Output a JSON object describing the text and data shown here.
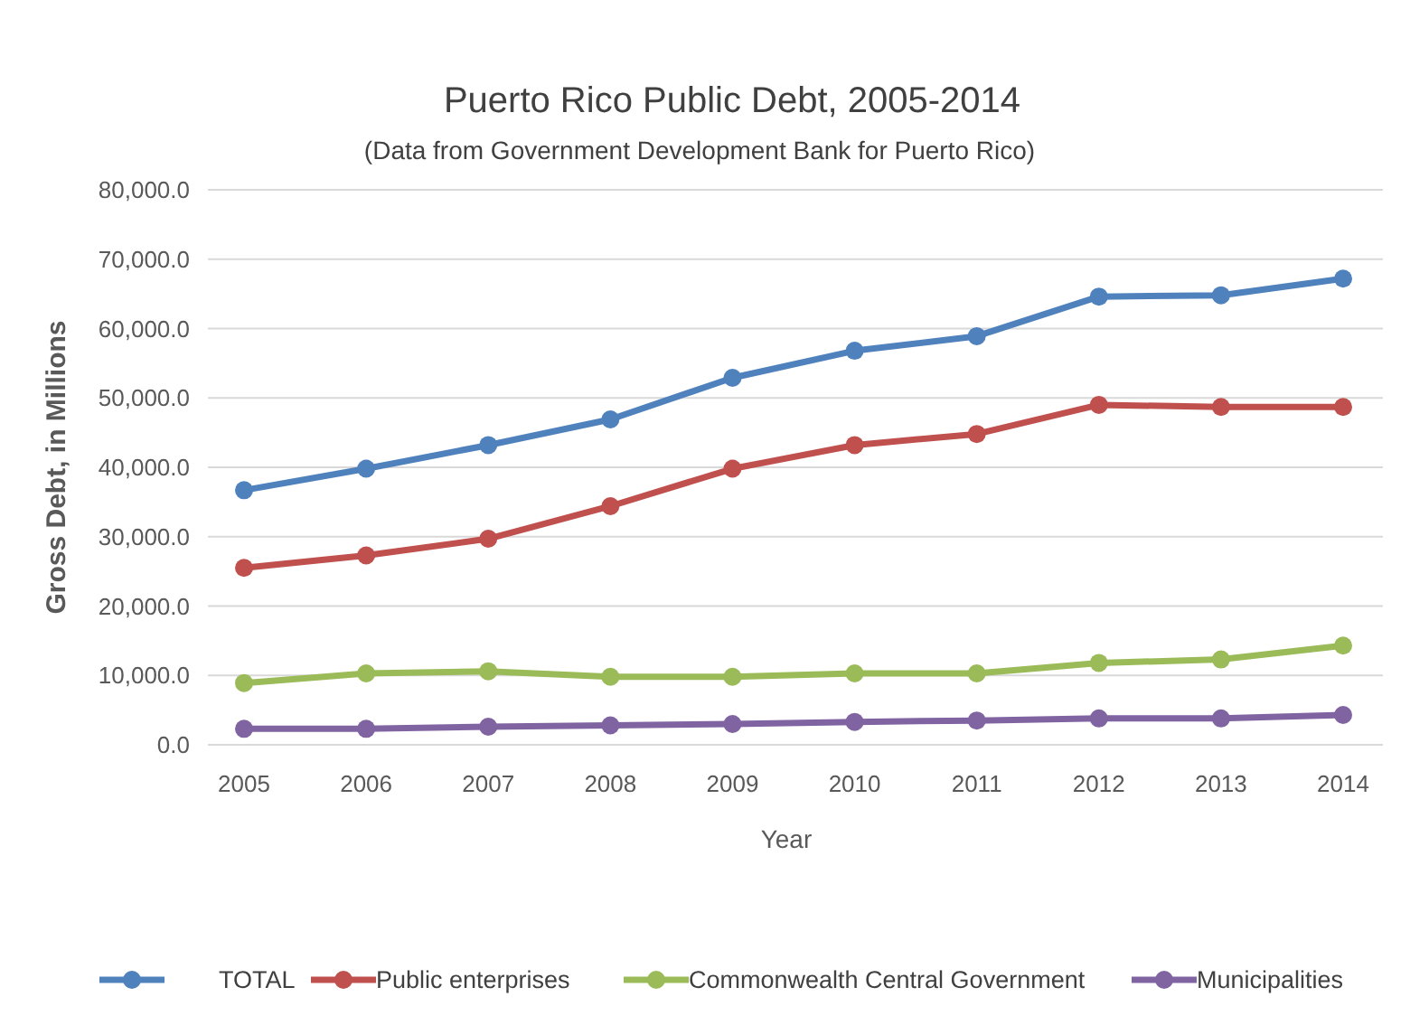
{
  "chart_data": {
    "type": "line",
    "title": "Puerto Rico Public Debt, 2005-2014",
    "subtitle": "(Data from Government Development Bank for Puerto Rico)",
    "xlabel": "Year",
    "ylabel": "Gross Debt, in Millions",
    "categories": [
      "2005",
      "2006",
      "2007",
      "2008",
      "2009",
      "2010",
      "2011",
      "2012",
      "2013",
      "2014"
    ],
    "series": [
      {
        "name": "TOTAL",
        "color": "#4f81bd",
        "values": [
          36700,
          39800,
          43200,
          46900,
          52900,
          56800,
          58900,
          64600,
          64800,
          67200
        ]
      },
      {
        "name": "Public enterprises",
        "color": "#c0504d",
        "values": [
          25500,
          27300,
          29700,
          34400,
          39800,
          43200,
          44800,
          49000,
          48700,
          48700
        ]
      },
      {
        "name": "Commonwealth Central Government",
        "color": "#9bbb59",
        "values": [
          8900,
          10300,
          10600,
          9800,
          9800,
          10300,
          10300,
          11800,
          12300,
          14300
        ]
      },
      {
        "name": "Municipalities",
        "color": "#8064a2",
        "values": [
          2300,
          2300,
          2600,
          2800,
          3000,
          3300,
          3500,
          3800,
          3800,
          4300
        ]
      }
    ],
    "ylim": [
      0,
      80000
    ],
    "yticks": [
      {
        "value": 0,
        "label": "0.0"
      },
      {
        "value": 10000,
        "label": "10,000.0"
      },
      {
        "value": 20000,
        "label": "20,000.0"
      },
      {
        "value": 30000,
        "label": "30,000.0"
      },
      {
        "value": 40000,
        "label": "40,000.0"
      },
      {
        "value": 50000,
        "label": "50,000.0"
      },
      {
        "value": 60000,
        "label": "60,000.0"
      },
      {
        "value": 70000,
        "label": "70,000.0"
      },
      {
        "value": 80000,
        "label": "80,000.0"
      }
    ],
    "grid": "y",
    "legend": "bottom",
    "marker": "circle",
    "line_style": "solid"
  }
}
